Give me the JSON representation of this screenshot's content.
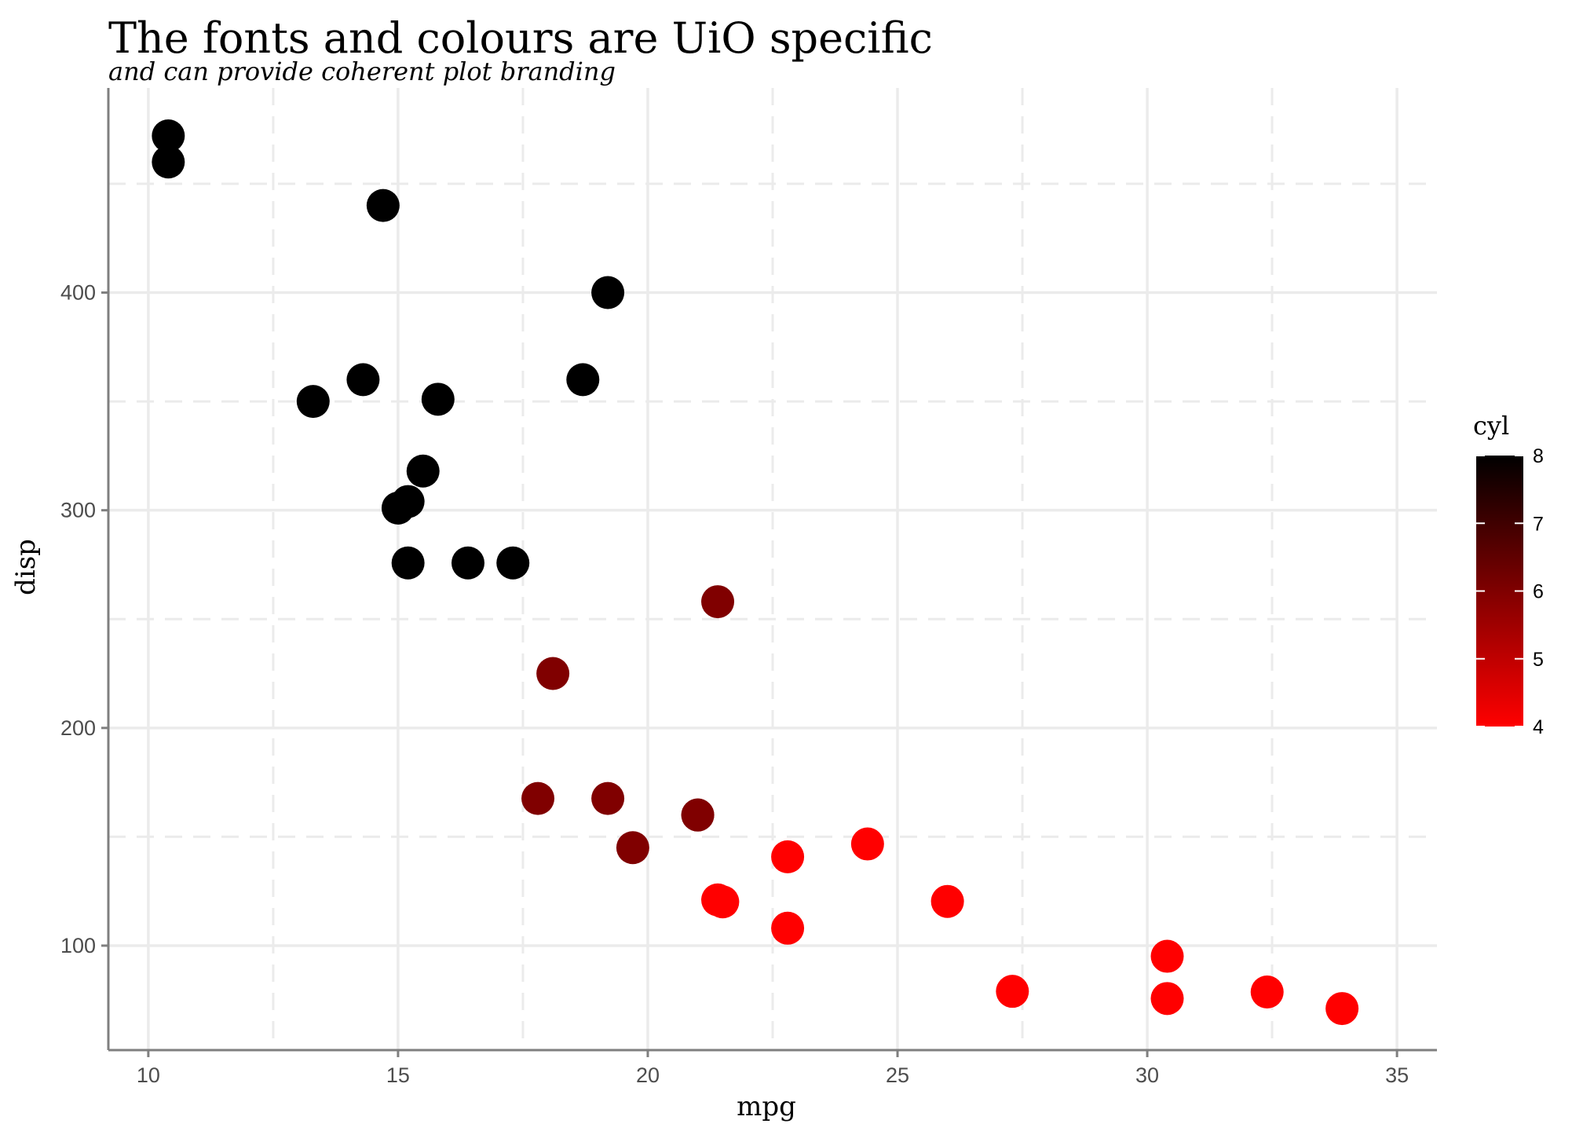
{
  "chart_data": {
    "type": "scatter",
    "title": "The fonts and colours are UiO specific",
    "subtitle": "and can provide coherent plot branding",
    "xlabel": "mpg",
    "ylabel": "disp",
    "xlim": [
      9.2,
      35.8
    ],
    "ylim": [
      52,
      494
    ],
    "x_ticks": [
      10,
      15,
      20,
      25,
      30,
      35
    ],
    "y_ticks": [
      100,
      200,
      300,
      400
    ],
    "x_tick_labels": [
      "10",
      "15",
      "20",
      "25",
      "30",
      "35"
    ],
    "y_tick_labels": [
      "100",
      "200",
      "300",
      "400"
    ],
    "grid": "major solid, minor dashed",
    "legend": {
      "title": "cyl",
      "position": "right",
      "min": 4,
      "max": 8,
      "ticks": [
        "4",
        "5",
        "6",
        "7",
        "8"
      ],
      "low_color": "#ff0000",
      "high_color": "#000000"
    },
    "points": [
      {
        "mpg": 21.0,
        "disp": 160,
        "cyl": 6
      },
      {
        "mpg": 21.0,
        "disp": 160,
        "cyl": 6
      },
      {
        "mpg": 22.8,
        "disp": 108,
        "cyl": 4
      },
      {
        "mpg": 21.4,
        "disp": 258,
        "cyl": 6
      },
      {
        "mpg": 18.7,
        "disp": 360,
        "cyl": 8
      },
      {
        "mpg": 18.1,
        "disp": 225,
        "cyl": 6
      },
      {
        "mpg": 14.3,
        "disp": 360,
        "cyl": 8
      },
      {
        "mpg": 24.4,
        "disp": 146.7,
        "cyl": 4
      },
      {
        "mpg": 22.8,
        "disp": 140.8,
        "cyl": 4
      },
      {
        "mpg": 19.2,
        "disp": 167.6,
        "cyl": 6
      },
      {
        "mpg": 17.8,
        "disp": 167.6,
        "cyl": 6
      },
      {
        "mpg": 16.4,
        "disp": 275.8,
        "cyl": 8
      },
      {
        "mpg": 17.3,
        "disp": 275.8,
        "cyl": 8
      },
      {
        "mpg": 15.2,
        "disp": 275.8,
        "cyl": 8
      },
      {
        "mpg": 10.4,
        "disp": 472,
        "cyl": 8
      },
      {
        "mpg": 10.4,
        "disp": 460,
        "cyl": 8
      },
      {
        "mpg": 14.7,
        "disp": 440,
        "cyl": 8
      },
      {
        "mpg": 32.4,
        "disp": 78.7,
        "cyl": 4
      },
      {
        "mpg": 30.4,
        "disp": 75.7,
        "cyl": 4
      },
      {
        "mpg": 33.9,
        "disp": 71.1,
        "cyl": 4
      },
      {
        "mpg": 21.5,
        "disp": 120.1,
        "cyl": 4
      },
      {
        "mpg": 15.5,
        "disp": 318,
        "cyl": 8
      },
      {
        "mpg": 15.2,
        "disp": 304,
        "cyl": 8
      },
      {
        "mpg": 13.3,
        "disp": 350,
        "cyl": 8
      },
      {
        "mpg": 19.2,
        "disp": 400,
        "cyl": 8
      },
      {
        "mpg": 27.3,
        "disp": 79,
        "cyl": 4
      },
      {
        "mpg": 26.0,
        "disp": 120.3,
        "cyl": 4
      },
      {
        "mpg": 30.4,
        "disp": 95.1,
        "cyl": 4
      },
      {
        "mpg": 15.8,
        "disp": 351,
        "cyl": 8
      },
      {
        "mpg": 19.7,
        "disp": 145,
        "cyl": 6
      },
      {
        "mpg": 15.0,
        "disp": 301,
        "cyl": 8
      },
      {
        "mpg": 21.4,
        "disp": 121,
        "cyl": 4
      }
    ]
  }
}
